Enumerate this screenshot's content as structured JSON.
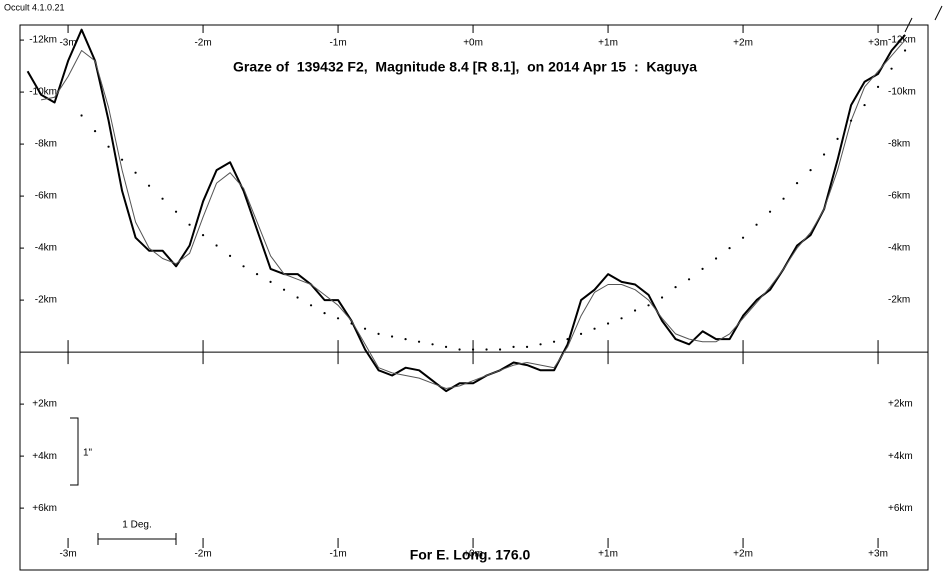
{
  "app_label": "Occult 4.1.0.21",
  "chart_data": {
    "type": "line",
    "title": "Graze of  139432 F2,  Magnitude 8.4 [R 8.1],  on 2014 Apr 15  :  Kaguya",
    "footer": "For E. Long. 176.0",
    "scale_arcsec_label": "1\"",
    "scale_deg_label": "1 Deg.",
    "xlim": [
      -3.356,
      3.37
    ],
    "ylim": [
      8.38,
      -12.58
    ],
    "xticks": [
      {
        "value": -3,
        "label": "-3m"
      },
      {
        "value": -2,
        "label": "-2m"
      },
      {
        "value": -1,
        "label": "-1m"
      },
      {
        "value": 0,
        "label": "+0m"
      },
      {
        "value": 1,
        "label": "+1m"
      },
      {
        "value": 2,
        "label": "+2m"
      },
      {
        "value": 3,
        "label": "+3m"
      }
    ],
    "yticks": [
      {
        "value": -12,
        "label": "-12km"
      },
      {
        "value": -10,
        "label": "-10km"
      },
      {
        "value": -8,
        "label": "-8km"
      },
      {
        "value": -6,
        "label": "-6km"
      },
      {
        "value": -4,
        "label": "-4km"
      },
      {
        "value": -2,
        "label": "-2km"
      },
      {
        "value": 2,
        "label": "+2km"
      },
      {
        "value": 4,
        "label": "+4km"
      },
      {
        "value": 6,
        "label": "+6km"
      }
    ],
    "x": [
      -3.3,
      -3.2,
      -3.1,
      -3.0,
      -2.9,
      -2.8,
      -2.7,
      -2.6,
      -2.5,
      -2.4,
      -2.3,
      -2.2,
      -2.1,
      -2.0,
      -1.9,
      -1.8,
      -1.7,
      -1.6,
      -1.5,
      -1.4,
      -1.3,
      -1.2,
      -1.1,
      -1.0,
      -0.9,
      -0.8,
      -0.7,
      -0.6,
      -0.5,
      -0.4,
      -0.3,
      -0.2,
      -0.1,
      0.0,
      0.1,
      0.2,
      0.3,
      0.4,
      0.5,
      0.6,
      0.7,
      0.8,
      0.9,
      1.0,
      1.1,
      1.2,
      1.3,
      1.4,
      1.5,
      1.6,
      1.7,
      1.8,
      1.9,
      2.0,
      2.1,
      2.2,
      2.3,
      2.4,
      2.5,
      2.6,
      2.7,
      2.8,
      2.9,
      3.0,
      3.1,
      3.2
    ],
    "series": [
      {
        "color": "#000000",
        "width": 2,
        "values": [
          -10.8,
          -9.9,
          -9.6,
          -11.2,
          -12.4,
          -11.2,
          -8.9,
          -6.2,
          -4.4,
          -3.9,
          -3.9,
          -3.3,
          -4.1,
          -5.8,
          -7.0,
          -7.3,
          -6.2,
          -4.7,
          -3.2,
          -3.0,
          -3.0,
          -2.6,
          -2.0,
          -2.0,
          -1.2,
          -0.1,
          0.7,
          0.9,
          0.6,
          0.7,
          1.1,
          1.5,
          1.2,
          1.2,
          0.9,
          0.7,
          0.4,
          0.5,
          0.7,
          0.7,
          -0.3,
          -2.0,
          -2.4,
          -3.0,
          -2.7,
          -2.6,
          -2.2,
          -1.2,
          -0.5,
          -0.3,
          -0.8,
          -0.5,
          -0.5,
          -1.4,
          -2.0,
          -2.4,
          -3.2,
          -4.1,
          -4.5,
          -5.5,
          -7.4,
          -9.5,
          -10.4,
          -10.7,
          -11.6,
          -12.2
        ]
      },
      {
        "color": "#555555",
        "width": 1,
        "values": [
          null,
          -9.7,
          -9.8,
          -10.6,
          -11.6,
          -11.2,
          -9.4,
          -7.0,
          -5.0,
          -4.0,
          -3.6,
          -3.4,
          -3.8,
          -5.2,
          -6.5,
          -6.9,
          -6.3,
          -5.0,
          -3.7,
          -3.0,
          -2.8,
          -2.6,
          -2.2,
          -1.8,
          -1.2,
          -0.3,
          0.6,
          0.8,
          0.9,
          1.0,
          1.2,
          1.4,
          1.3,
          1.1,
          0.9,
          0.7,
          0.5,
          0.4,
          0.5,
          0.6,
          -0.2,
          -1.4,
          -2.3,
          -2.6,
          -2.6,
          -2.4,
          -2.0,
          -1.3,
          -0.7,
          -0.5,
          -0.4,
          -0.4,
          -0.7,
          -1.3,
          -1.9,
          -2.5,
          -3.2,
          -4.0,
          -4.6,
          -5.5,
          -7.0,
          -8.9,
          -10.2,
          -10.8,
          -11.4,
          -12.0
        ]
      },
      {
        "color": "#000000",
        "marker": "dot",
        "values": [
          null,
          null,
          null,
          null,
          -9.1,
          -8.5,
          -7.9,
          -7.4,
          -6.9,
          -6.4,
          -5.9,
          -5.4,
          -4.9,
          -4.5,
          -4.1,
          -3.7,
          -3.3,
          -3.0,
          -2.7,
          -2.4,
          -2.1,
          -1.8,
          -1.5,
          -1.3,
          -1.1,
          -0.9,
          -0.7,
          -0.6,
          -0.5,
          -0.4,
          -0.3,
          -0.2,
          -0.1,
          -0.1,
          -0.1,
          -0.1,
          -0.2,
          -0.2,
          -0.3,
          -0.4,
          -0.5,
          -0.7,
          -0.9,
          -1.1,
          -1.3,
          -1.6,
          -1.8,
          -2.1,
          -2.5,
          -2.8,
          -3.2,
          -3.6,
          -4.0,
          -4.4,
          -4.9,
          -5.4,
          -5.9,
          -6.5,
          -7.0,
          -7.6,
          -8.2,
          -8.9,
          -9.5,
          -10.2,
          -10.9,
          -11.6
        ]
      }
    ]
  }
}
